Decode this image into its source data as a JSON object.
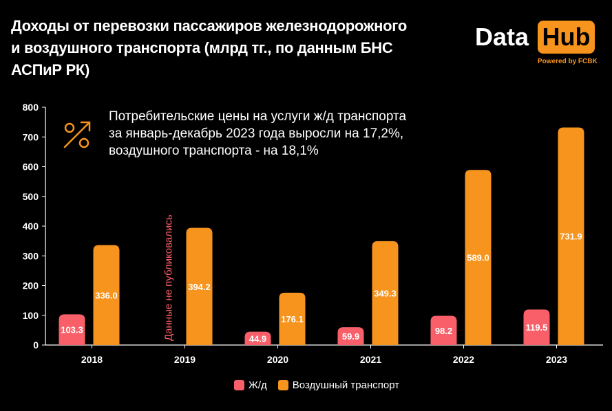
{
  "title": {
    "line1": "Доходы от перевозки пассажиров железнодорожного",
    "line2": "и воздушного транспорта (млрд тг., по данным БНС",
    "line3": "АСПиР РК)"
  },
  "logo": {
    "data": "Data",
    "hub": "Hub",
    "powered": "Powered by FCBK"
  },
  "note": {
    "line1": "Потребительские цены на услуги ж/д транспорта",
    "line2": "за январь-декабрь 2023 года выросли на 17,2%,",
    "line3": "воздушного транспорта - на 18,1%"
  },
  "icon": "percent-icon",
  "colors": {
    "rail": "#f85f69",
    "air": "#f7941d",
    "axis": "#ffffff",
    "grid": "#333333",
    "annotation": "#f85f69"
  },
  "chart_data": {
    "type": "bar",
    "categories": [
      "2018",
      "2019",
      "2020",
      "2021",
      "2022",
      "2023"
    ],
    "series": [
      {
        "name": "Ж/д",
        "values": [
          103.3,
          null,
          44.9,
          59.9,
          98.2,
          119.5
        ],
        "labels": [
          "103.3",
          "",
          "44.9",
          "59.9",
          "98.2",
          "119.5"
        ]
      },
      {
        "name": "Воздушный транспорт",
        "values": [
          336.0,
          394.2,
          176.1,
          349.3,
          589.0,
          731.9
        ],
        "labels": [
          "336.0",
          "394.2",
          "176.1",
          "349.3",
          "589.0",
          "731.9"
        ]
      }
    ],
    "yticks": [
      "0",
      "100",
      "200",
      "300",
      "400",
      "500",
      "600",
      "700",
      "800"
    ],
    "ylim": [
      0,
      800
    ],
    "annotation": {
      "category": "2019",
      "text": "Данные не публиковались"
    },
    "xlabel": "",
    "ylabel": ""
  }
}
